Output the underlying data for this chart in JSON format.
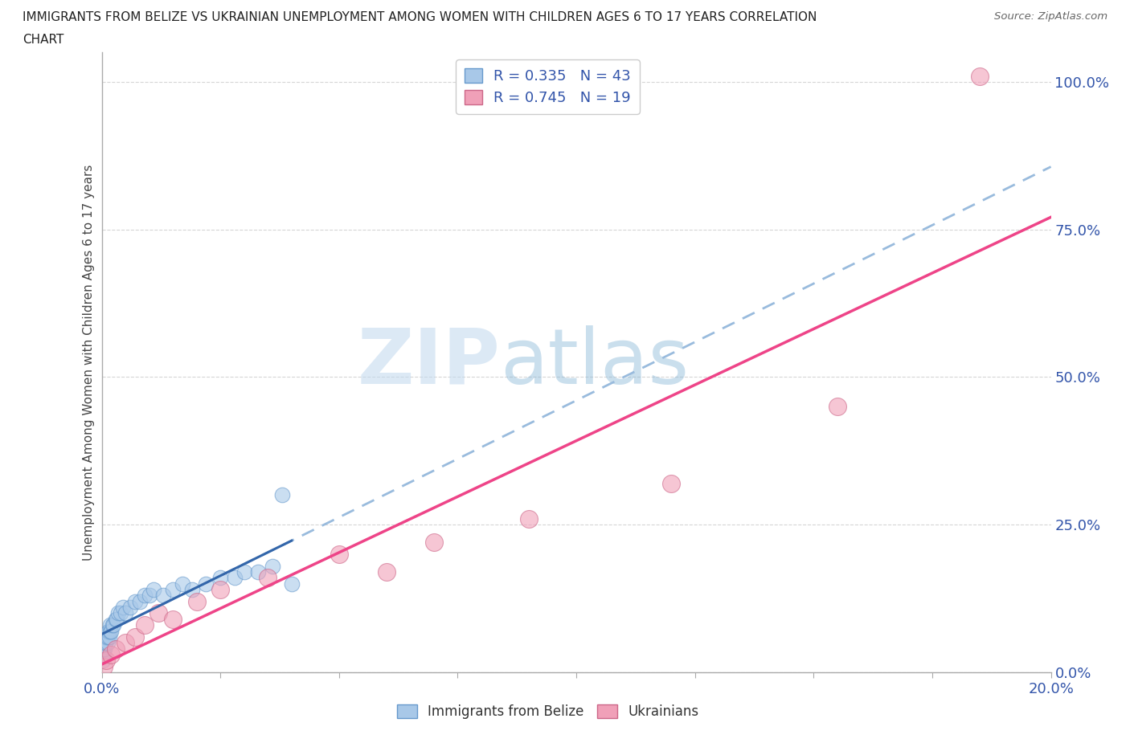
{
  "title_line1": "IMMIGRANTS FROM BELIZE VS UKRAINIAN UNEMPLOYMENT AMONG WOMEN WITH CHILDREN AGES 6 TO 17 YEARS CORRELATION",
  "title_line2": "CHART",
  "source_text": "Source: ZipAtlas.com",
  "ylabel": "Unemployment Among Women with Children Ages 6 to 17 years",
  "xlim": [
    0.0,
    0.2
  ],
  "ylim": [
    0.0,
    1.05
  ],
  "xticks": [
    0.0,
    0.025,
    0.05,
    0.075,
    0.1,
    0.125,
    0.15,
    0.175,
    0.2
  ],
  "xticklabels": [
    "0.0%",
    "",
    "",
    "",
    "",
    "",
    "",
    "",
    "20.0%"
  ],
  "yticks": [
    0.0,
    0.25,
    0.5,
    0.75,
    1.0
  ],
  "yticklabels": [
    "0.0%",
    "25.0%",
    "50.0%",
    "75.0%",
    "100.0%"
  ],
  "blue_color": "#a8c8e8",
  "blue_edge_color": "#6699cc",
  "pink_color": "#f0a0b8",
  "pink_edge_color": "#cc6688",
  "blue_line_color": "#3366aa",
  "pink_line_color": "#ee4488",
  "dashed_line_color": "#99bbdd",
  "R_blue": 0.335,
  "N_blue": 43,
  "R_pink": 0.745,
  "N_pink": 19,
  "blue_x": [
    0.0002,
    0.0003,
    0.0004,
    0.0005,
    0.0006,
    0.0007,
    0.0008,
    0.0009,
    0.001,
    0.0012,
    0.0013,
    0.0014,
    0.0015,
    0.0016,
    0.0017,
    0.0018,
    0.002,
    0.0022,
    0.0025,
    0.003,
    0.0032,
    0.0035,
    0.004,
    0.0045,
    0.005,
    0.006,
    0.007,
    0.008,
    0.009,
    0.01,
    0.011,
    0.013,
    0.015,
    0.017,
    0.019,
    0.022,
    0.025,
    0.028,
    0.03,
    0.033,
    0.036,
    0.038,
    0.04
  ],
  "blue_y": [
    0.02,
    0.03,
    0.03,
    0.04,
    0.04,
    0.05,
    0.05,
    0.06,
    0.06,
    0.05,
    0.06,
    0.07,
    0.07,
    0.06,
    0.07,
    0.08,
    0.07,
    0.08,
    0.08,
    0.09,
    0.09,
    0.1,
    0.1,
    0.11,
    0.1,
    0.11,
    0.12,
    0.12,
    0.13,
    0.13,
    0.14,
    0.13,
    0.14,
    0.15,
    0.14,
    0.15,
    0.16,
    0.16,
    0.17,
    0.17,
    0.18,
    0.3,
    0.15
  ],
  "pink_x": [
    0.0005,
    0.001,
    0.002,
    0.003,
    0.005,
    0.007,
    0.009,
    0.012,
    0.015,
    0.02,
    0.025,
    0.035,
    0.05,
    0.06,
    0.07,
    0.09,
    0.12,
    0.155,
    0.185
  ],
  "pink_y": [
    0.01,
    0.02,
    0.03,
    0.04,
    0.05,
    0.06,
    0.08,
    0.1,
    0.09,
    0.12,
    0.14,
    0.16,
    0.2,
    0.17,
    0.22,
    0.26,
    0.32,
    0.45,
    1.01
  ],
  "watermark_zip_color": "#c8ddf0",
  "watermark_atlas_color": "#99bbdd",
  "legend_text_color": "#3355aa",
  "bottom_legend_label1": "Immigrants from Belize",
  "bottom_legend_label2": "Ukrainians"
}
